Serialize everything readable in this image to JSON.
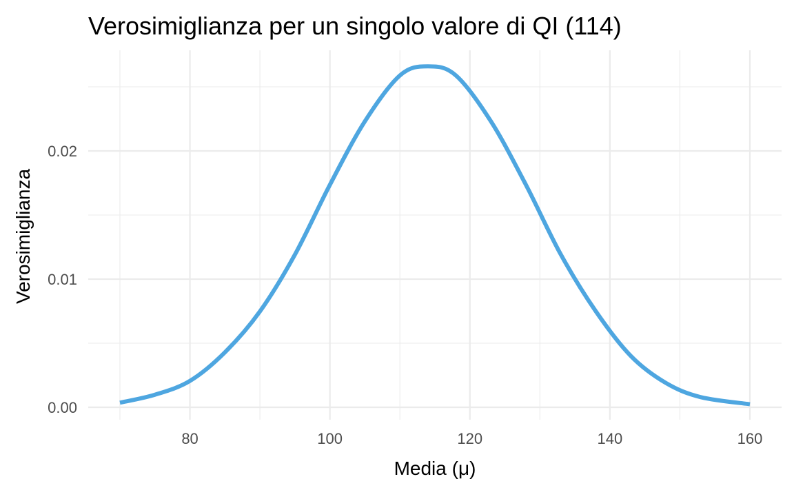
{
  "chart_data": {
    "type": "line",
    "title": "Verosimiglianza per un singolo valore di QI (114)",
    "xlabel": "Media (μ)",
    "ylabel": "Verosimiglianza",
    "xlim": [
      70,
      160
    ],
    "ylim": [
      0,
      0.0266
    ],
    "x_ticks": [
      80,
      100,
      120,
      140,
      160
    ],
    "x_tick_labels": [
      "80",
      "100",
      "120",
      "140",
      "160"
    ],
    "y_ticks": [
      0.0,
      0.01,
      0.02
    ],
    "y_tick_labels": [
      "0.00",
      "0.01",
      "0.02"
    ],
    "grid": true,
    "series": [
      {
        "color": "#4ea6e0",
        "x": [
          70,
          75,
          80,
          85,
          90,
          95,
          100,
          105,
          110,
          114,
          118,
          123,
          128,
          133,
          138,
          143,
          148,
          153,
          160
        ],
        "y": [
          0.00036,
          0.00098,
          0.00206,
          0.00429,
          0.00748,
          0.01191,
          0.01736,
          0.02231,
          0.02589,
          0.0266,
          0.02589,
          0.02231,
          0.01736,
          0.01191,
          0.00748,
          0.004,
          0.0019,
          0.00079,
          0.00024
        ]
      }
    ]
  }
}
